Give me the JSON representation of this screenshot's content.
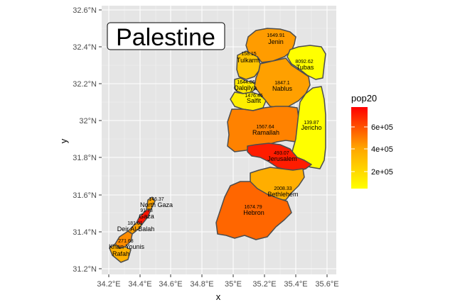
{
  "map_title": "Palestine",
  "axes": {
    "xlabel": "x",
    "ylabel": "y",
    "x_ticks": [
      "34.2°E",
      "34.4°E",
      "34.6°E",
      "34.8°E",
      "35°E",
      "35.2°E",
      "35.4°E",
      "35.6°E"
    ],
    "y_ticks": [
      "32.6°N",
      "32.4°N",
      "32.2°N",
      "32°N",
      "31.8°N",
      "31.6°N",
      "31.4°N",
      "31.2°N"
    ],
    "xlim": [
      34.15,
      35.65
    ],
    "ylim": [
      31.18,
      32.63
    ],
    "panel_background": "#e5e5e5",
    "grid": true
  },
  "legend": {
    "title": "pop20",
    "labels": [
      "6e+05",
      "4e+05",
      "2e+05"
    ],
    "scale": {
      "low": 0,
      "high": 800000,
      "low_color": "#ffff00",
      "high_color": "#ff0000"
    }
  },
  "regions": [
    {
      "name": "Jenin",
      "value": "1649.91",
      "pop20": 330000,
      "fill": "#ff9c00"
    },
    {
      "name": "Tulkarm",
      "value": "158.15",
      "pop20": 200000,
      "fill": "#ffc400"
    },
    {
      "name": "Tubas",
      "value": "8092.62",
      "pop20": 65000,
      "fill": "#ffff00"
    },
    {
      "name": "Qalqilya",
      "value": "1644.86",
      "pop20": 120000,
      "fill": "#ffe700"
    },
    {
      "name": "Nablus",
      "value": "1847.1",
      "pop20": 410000,
      "fill": "#ffa000"
    },
    {
      "name": "Salfit",
      "value": "1476.46",
      "pop20": 80000,
      "fill": "#ffee00"
    },
    {
      "name": "Ramallah",
      "value": "1567.64",
      "pop20": 350000,
      "fill": "#ff8200"
    },
    {
      "name": "Jericho",
      "value": "139.87",
      "pop20": 55000,
      "fill": "#ffff00"
    },
    {
      "name": "Jerusalem",
      "value": "493.07",
      "pop20": 460000,
      "fill": "#ff1c00"
    },
    {
      "name": "Bethlehem",
      "value": "2008.33",
      "pop20": 230000,
      "fill": "#ffae00"
    },
    {
      "name": "Hebron",
      "value": "1674.79",
      "pop20": 760000,
      "fill": "#ff6600"
    },
    {
      "name": "North Gaza",
      "value": "146.37",
      "pop20": 400000,
      "fill": "#ffa400"
    },
    {
      "name": "Gaza",
      "value": "91.73",
      "pop20": 700000,
      "fill": "#ff1400"
    },
    {
      "name": "Deir Al-Balah",
      "value": "181.01",
      "pop20": 290000,
      "fill": "#ffa000"
    },
    {
      "name": "Khan Younis",
      "value": "271.68",
      "pop20": 400000,
      "fill": "#ff8c00"
    },
    {
      "name": "Rafah",
      "value": "",
      "pop20": 250000,
      "fill": "#ffb000"
    }
  ]
}
